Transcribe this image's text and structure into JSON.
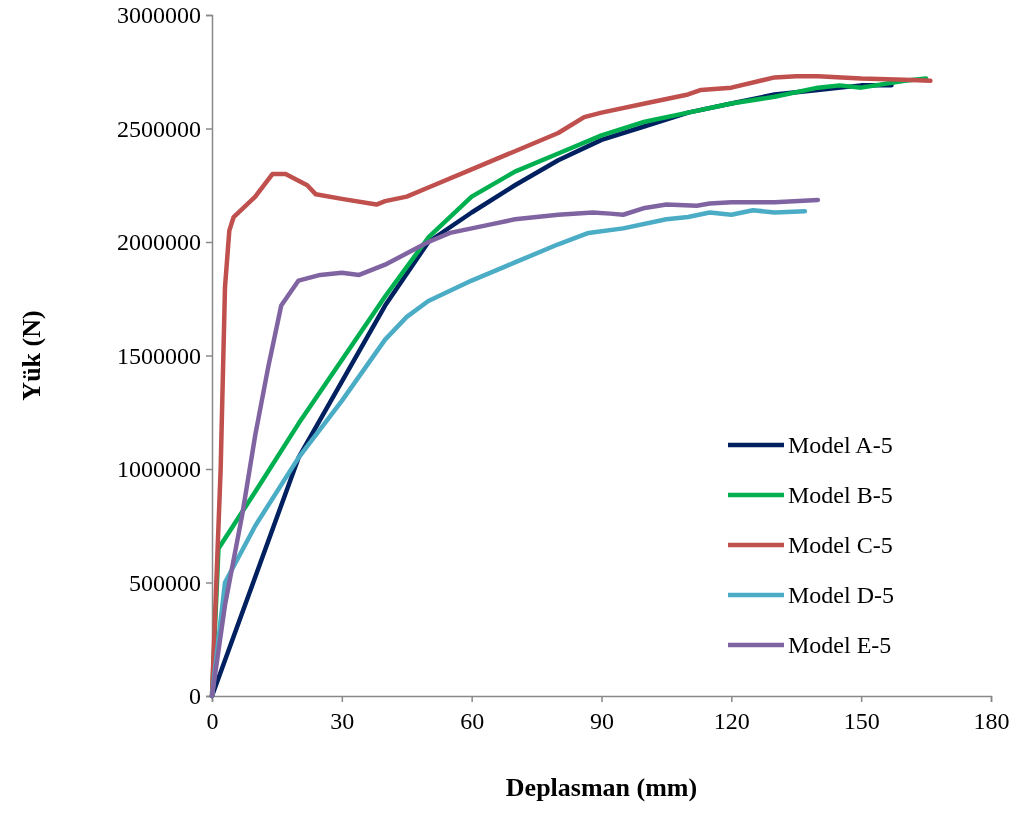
{
  "chart_data": {
    "type": "line",
    "xlabel": "Deplasman (mm)",
    "ylabel": "Yük (N)",
    "xlim": [
      0,
      180
    ],
    "xticks": [
      0,
      30,
      60,
      90,
      120,
      150,
      180
    ],
    "ylim": [
      0,
      3000000
    ],
    "yticks": [
      0,
      500000,
      1000000,
      1500000,
      2000000,
      2500000,
      3000000
    ],
    "grid": false,
    "legend": "bottom right",
    "marker": "none",
    "line_style": "solid",
    "series": [
      {
        "name": "Model A-5",
        "color": "#002060",
        "x": [
          0,
          20,
          30,
          40,
          50,
          60,
          70,
          80,
          90,
          100,
          110,
          120,
          130,
          140,
          150,
          157
        ],
        "values": [
          0,
          1050000,
          1385000,
          1720000,
          2000000,
          2130000,
          2250000,
          2360000,
          2450000,
          2510000,
          2570000,
          2610000,
          2650000,
          2670000,
          2690000,
          2690000
        ]
      },
      {
        "name": "Model B-5",
        "color": "#00b050",
        "x": [
          0,
          1.5,
          10,
          20,
          30,
          40,
          50,
          60,
          70,
          80,
          90,
          100,
          110,
          120,
          130,
          140,
          145,
          150,
          160,
          165
        ],
        "values": [
          0,
          650000,
          900000,
          1200000,
          1480000,
          1760000,
          2020000,
          2200000,
          2310000,
          2390000,
          2470000,
          2530000,
          2570000,
          2610000,
          2640000,
          2680000,
          2690000,
          2680000,
          2710000,
          2720000
        ]
      },
      {
        "name": "Model C-5",
        "color": "#c0504d",
        "x": [
          0,
          2,
          3,
          4,
          5,
          10,
          14,
          17,
          22,
          24,
          30,
          38,
          40,
          45,
          50,
          60,
          70,
          80,
          86,
          90,
          100,
          110,
          113,
          120,
          130,
          135,
          140,
          150,
          160,
          166
        ],
        "values": [
          0,
          1000000,
          1800000,
          2050000,
          2110000,
          2200000,
          2300000,
          2300000,
          2250000,
          2210000,
          2190000,
          2165000,
          2180000,
          2200000,
          2240000,
          2320000,
          2400000,
          2480000,
          2550000,
          2570000,
          2610000,
          2650000,
          2670000,
          2680000,
          2725000,
          2730000,
          2730000,
          2720000,
          2715000,
          2710000
        ]
      },
      {
        "name": "Model D-5",
        "color": "#4bacc6",
        "x": [
          0,
          3,
          10,
          20,
          30,
          40,
          45,
          50,
          60,
          70,
          80,
          87,
          95,
          105,
          110,
          115,
          120,
          125,
          130,
          137
        ],
        "values": [
          0,
          500000,
          750000,
          1050000,
          1300000,
          1570000,
          1670000,
          1740000,
          1830000,
          1910000,
          1990000,
          2040000,
          2060000,
          2100000,
          2110000,
          2130000,
          2120000,
          2140000,
          2130000,
          2135000
        ]
      },
      {
        "name": "Model E-5",
        "color": "#8064a2",
        "x": [
          0,
          3,
          7,
          10,
          13,
          16,
          20,
          25,
          30,
          34,
          40,
          50,
          55,
          60,
          65,
          70,
          80,
          88,
          92,
          95,
          100,
          105,
          112,
          115,
          120,
          130,
          140
        ],
        "values": [
          0,
          400000,
          800000,
          1150000,
          1450000,
          1720000,
          1830000,
          1855000,
          1865000,
          1855000,
          1900000,
          2000000,
          2040000,
          2060000,
          2080000,
          2100000,
          2120000,
          2130000,
          2125000,
          2120000,
          2150000,
          2165000,
          2160000,
          2170000,
          2175000,
          2175000,
          2185000
        ]
      }
    ]
  }
}
